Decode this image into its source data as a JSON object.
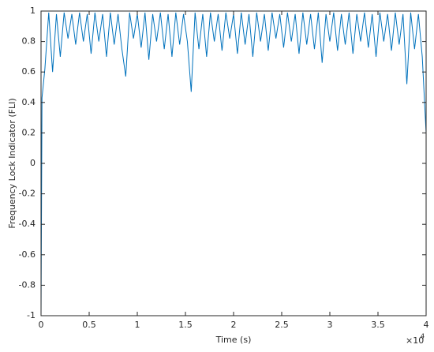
{
  "chart_data": {
    "type": "line",
    "xlabel": "Time (s)",
    "ylabel": "Frequency Lock Indicator (FLI)",
    "x_multiplier": "×10",
    "x_multiplier_exponent": "4",
    "color": "#0072bd",
    "xlim": [
      0,
      40000
    ],
    "ylim": [
      -1,
      1
    ],
    "xticks": [
      0,
      {
        "value": 5000,
        "label": "0.5"
      },
      {
        "value": 10000,
        "label": "1"
      },
      {
        "value": 15000,
        "label": "1.5"
      },
      {
        "value": 20000,
        "label": "2"
      },
      {
        "value": 25000,
        "label": "2.5"
      },
      {
        "value": 30000,
        "label": "3"
      },
      {
        "value": 35000,
        "label": "3.5"
      },
      {
        "value": 40000,
        "label": "4"
      }
    ],
    "yticks": [
      -1,
      -0.8,
      -0.6,
      -0.4,
      -0.2,
      0,
      0.2,
      0.4,
      0.6,
      0.8,
      1
    ],
    "x": [
      0,
      100,
      400,
      800,
      1200,
      1600,
      2000,
      2400,
      2800,
      3200,
      3600,
      4000,
      4400,
      4800,
      5200,
      5600,
      6000,
      6400,
      6800,
      7200,
      7600,
      8000,
      8400,
      8800,
      9200,
      9600,
      10000,
      10400,
      10800,
      11200,
      11600,
      12000,
      12400,
      12800,
      13200,
      13600,
      14000,
      14400,
      14800,
      15200,
      15600,
      16000,
      16400,
      16800,
      17200,
      17600,
      18000,
      18400,
      18800,
      19200,
      19600,
      20000,
      20400,
      20800,
      21200,
      21600,
      22000,
      22400,
      22800,
      23200,
      23600,
      24000,
      24400,
      24800,
      25200,
      25600,
      26000,
      26400,
      26800,
      27200,
      27600,
      28000,
      28400,
      28800,
      29200,
      29600,
      30000,
      30400,
      30800,
      31200,
      31600,
      32000,
      32400,
      32800,
      33200,
      33600,
      34000,
      34400,
      34800,
      35200,
      35600,
      36000,
      36400,
      36800,
      37200,
      37600,
      38000,
      38400,
      38800,
      39200,
      39600,
      40000
    ],
    "values": [
      -1,
      0.43,
      0.62,
      0.99,
      0.6,
      0.98,
      0.7,
      0.99,
      0.82,
      0.98,
      0.78,
      0.99,
      0.8,
      0.98,
      0.72,
      0.99,
      0.8,
      0.98,
      0.7,
      0.99,
      0.78,
      0.98,
      0.75,
      0.57,
      0.99,
      0.82,
      0.98,
      0.76,
      0.99,
      0.68,
      0.98,
      0.8,
      0.99,
      0.75,
      0.98,
      0.7,
      0.99,
      0.78,
      0.98,
      0.8,
      0.47,
      0.99,
      0.75,
      0.98,
      0.7,
      0.99,
      0.8,
      0.98,
      0.74,
      0.99,
      0.82,
      0.98,
      0.72,
      0.99,
      0.78,
      0.98,
      0.7,
      0.99,
      0.8,
      0.98,
      0.74,
      0.99,
      0.82,
      0.98,
      0.76,
      0.99,
      0.8,
      0.98,
      0.72,
      0.99,
      0.78,
      0.98,
      0.75,
      0.99,
      0.66,
      0.98,
      0.8,
      0.99,
      0.74,
      0.98,
      0.78,
      0.99,
      0.72,
      0.98,
      0.8,
      0.99,
      0.76,
      0.98,
      0.7,
      0.99,
      0.8,
      0.98,
      0.74,
      0.99,
      0.78,
      0.98,
      0.52,
      0.99,
      0.75,
      0.98,
      0.7,
      0.2
    ]
  }
}
